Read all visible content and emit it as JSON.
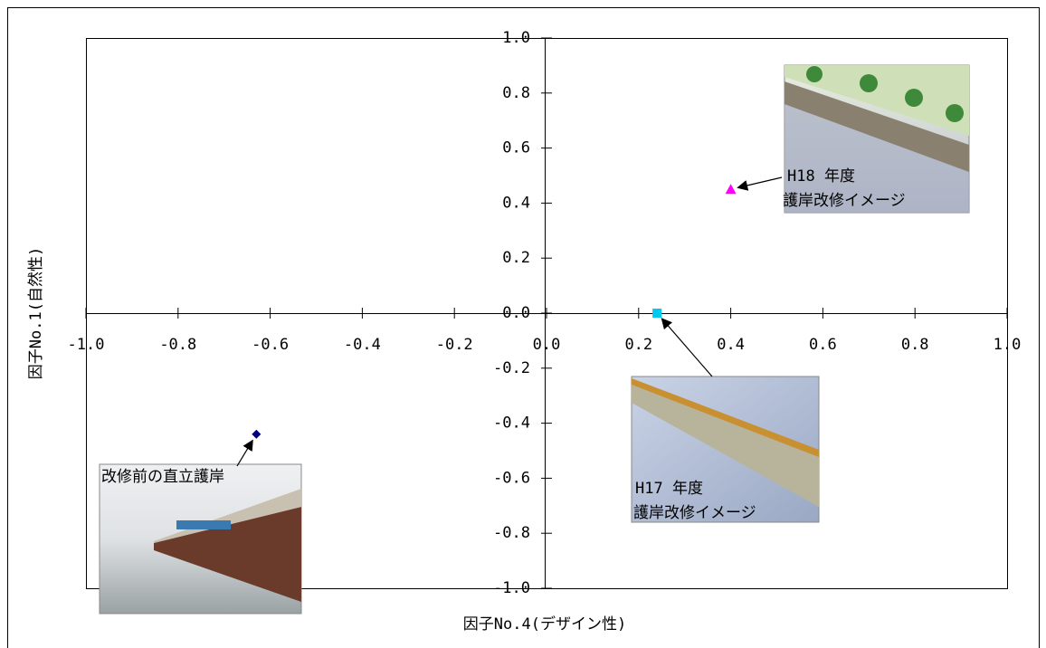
{
  "chart_data": {
    "type": "scatter",
    "x_label": "因子No.4(デザイン性)",
    "y_label": "因子No.1(自然性)",
    "series": [
      {
        "name": "改修前の直立護岸",
        "color": "#000080",
        "marker": "diamond",
        "x": [
          -0.63
        ],
        "values": [
          -0.44
        ]
      },
      {
        "name": "H17 年度 護岸改修イメージ",
        "color": "#00c8f0",
        "marker": "square",
        "x": [
          0.24
        ],
        "values": [
          0
        ]
      },
      {
        "name": "H18 年度 護岸改修イメージ",
        "color": "#ff00ff",
        "marker": "triangle",
        "x": [
          0.4
        ],
        "values": [
          0.45
        ]
      }
    ],
    "annotations": [
      {
        "lines": [
          "改修前の直立護岸"
        ]
      },
      {
        "lines": [
          "H17 年度",
          "護岸改修イメージ"
        ]
      },
      {
        "lines": [
          "H18 年度",
          "護岸改修イメージ"
        ]
      }
    ],
    "xlim": [
      -1.0,
      1.0
    ],
    "ylim": [
      -1.0,
      1.0
    ],
    "xticks": [
      {
        "value": -1.0,
        "label": "-1.0"
      },
      -0.8,
      -0.6,
      -0.4,
      -0.2,
      {
        "value": 0,
        "label": "0.0"
      },
      0.2,
      0.4,
      0.6,
      0.8,
      {
        "value": 1.0,
        "label": "1.0"
      }
    ],
    "yticks": [
      {
        "value": -1.0,
        "label": "-1.0"
      },
      -0.8,
      -0.6,
      -0.4,
      -0.2,
      {
        "value": 0,
        "label": "0.0"
      },
      0.2,
      0.4,
      0.6,
      0.8,
      {
        "value": 1.0,
        "label": "1.0"
      }
    ],
    "grid": false
  }
}
